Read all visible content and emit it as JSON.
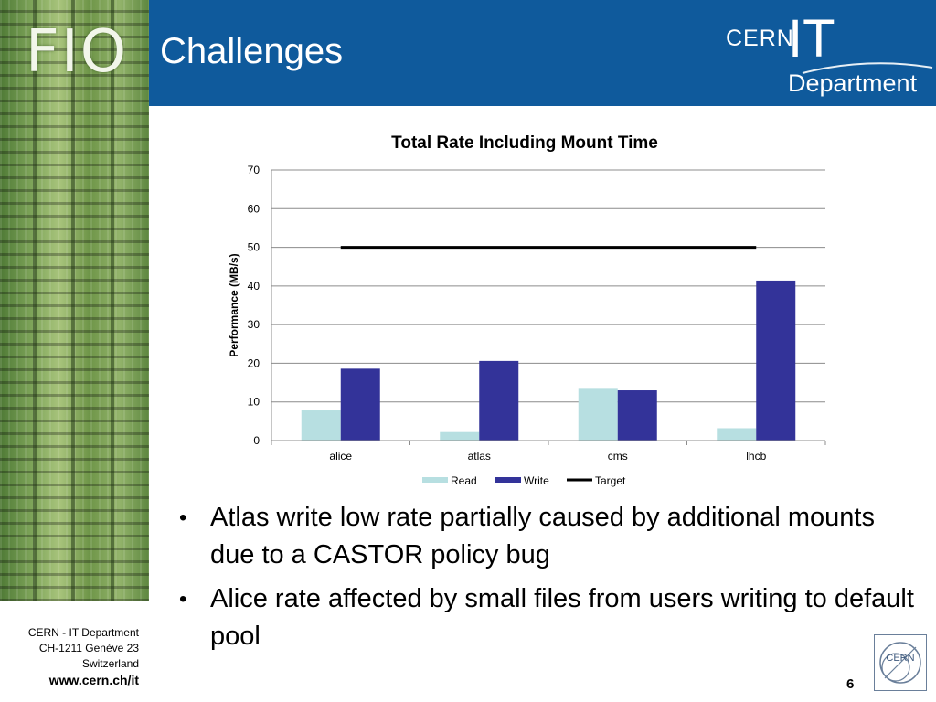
{
  "header": {
    "title": "Challenges",
    "logo_left": "FIO",
    "logo_cern": "CERN",
    "logo_it": "IT",
    "logo_department": "Department",
    "colors": {
      "header_bg": "#0f5a9c",
      "read": "#b7dfe1",
      "write": "#333399",
      "target": "#000000"
    }
  },
  "chart_data": {
    "type": "bar",
    "title": "Total Rate Including Mount Time",
    "xlabel": "",
    "ylabel": "Performance (MB/s)",
    "categories": [
      "alice",
      "atlas",
      "cms",
      "lhcb"
    ],
    "ylim": [
      0,
      70
    ],
    "yticks": [
      0,
      10,
      20,
      30,
      40,
      50,
      60,
      70
    ],
    "grid": true,
    "legend": "bottom",
    "series": [
      {
        "name": "Read",
        "type": "bar",
        "values": [
          7.8,
          2.2,
          13.4,
          3.2
        ]
      },
      {
        "name": "Write",
        "type": "bar",
        "values": [
          18.6,
          20.6,
          13.0,
          41.4
        ]
      },
      {
        "name": "Target",
        "type": "line",
        "values": [
          50,
          50,
          50,
          50
        ]
      }
    ]
  },
  "bullets": [
    "Atlas write low rate partially caused by additional mounts due to a CASTOR policy bug",
    "Alice rate affected by small files from users writing to default pool"
  ],
  "bullet_marker": "•",
  "footer": {
    "address_line1": "CERN - IT Department",
    "address_line2": "CH-1211 Genève 23",
    "address_line3": "Switzerland",
    "url": "www.cern.ch/it",
    "page_number": "6",
    "cern_logo_text": "CERN"
  }
}
